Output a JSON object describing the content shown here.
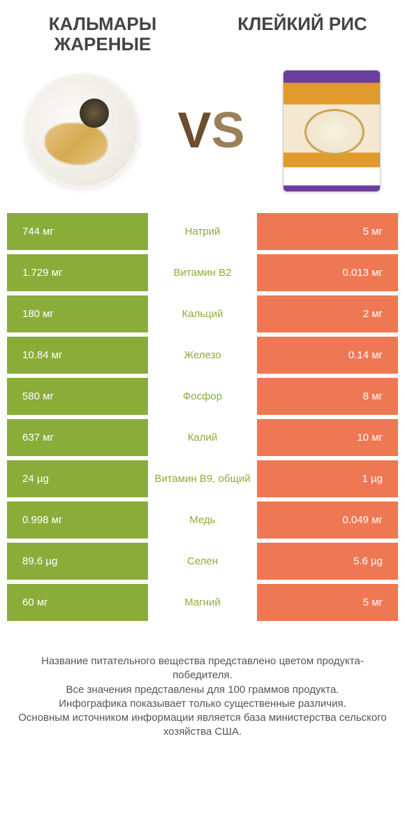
{
  "titles": {
    "left": "Кальмары жареные",
    "right": "Клейкий рис",
    "vs_v": "V",
    "vs_s": "S"
  },
  "colors": {
    "left_bg": "#8aad3a",
    "right_bg": "#ef7854",
    "left_label": "#8aad3a",
    "right_label": "#ef7854",
    "background": "#ffffff"
  },
  "rows": [
    {
      "left": "744 мг",
      "label": "Натрий",
      "right": "5 мг",
      "winner": "left"
    },
    {
      "left": "1.729 мг",
      "label": "Витамин B2",
      "right": "0.013 мг",
      "winner": "left"
    },
    {
      "left": "180 мг",
      "label": "Кальций",
      "right": "2 мг",
      "winner": "left"
    },
    {
      "left": "10.84 мг",
      "label": "Железо",
      "right": "0.14 мг",
      "winner": "left"
    },
    {
      "left": "580 мг",
      "label": "Фосфор",
      "right": "8 мг",
      "winner": "left"
    },
    {
      "left": "637 мг",
      "label": "Калий",
      "right": "10 мг",
      "winner": "left"
    },
    {
      "left": "24 µg",
      "label": "Витамин B9, общий",
      "right": "1 µg",
      "winner": "left"
    },
    {
      "left": "0.998 мг",
      "label": "Медь",
      "right": "0.049 мг",
      "winner": "left"
    },
    {
      "left": "89.6 µg",
      "label": "Селен",
      "right": "5.6 µg",
      "winner": "left"
    },
    {
      "left": "60 мг",
      "label": "Магний",
      "right": "5 мг",
      "winner": "left"
    }
  ],
  "footer": {
    "line1": "Название питательного вещества представлено цветом продукта-победителя.",
    "line2": "Все значения представлены для 100 граммов продукта.",
    "line3": "Инфографика показывает только существенные различия.",
    "line4": "Основным источником информации является база министерства сельского хозяйства США."
  }
}
